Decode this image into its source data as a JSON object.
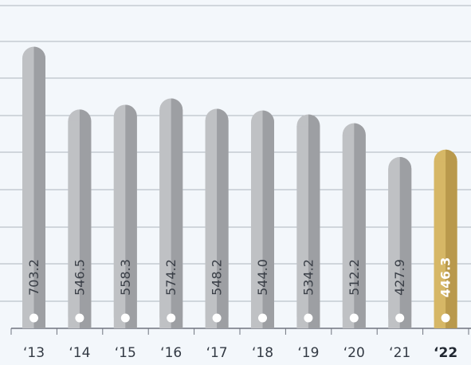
{
  "chart_data": {
    "type": "bar",
    "categories": [
      "‘13",
      "‘14",
      "‘15",
      "‘16",
      "‘17",
      "‘18",
      "‘19",
      "‘20",
      "‘21",
      "‘22"
    ],
    "series": [
      {
        "values": [
          703.2,
          546.5,
          558.3,
          574.2,
          548.2,
          544.0,
          534.2,
          512.2,
          427.9,
          446.3
        ]
      }
    ],
    "value_labels": [
      "703.2",
      "546.5",
      "558.3",
      "574.2",
      "548.2",
      "544.0",
      "534.2",
      "512.2",
      "427.9",
      "446.3"
    ],
    "highlight_index": 9,
    "ylim": [
      0,
      800
    ],
    "grid": true,
    "title": "",
    "xlabel": "",
    "ylabel": "",
    "colors": {
      "bar_light": "#bfc1c4",
      "bar_dark": "#9d9fa3",
      "highlight_light": "#d6b766",
      "highlight_dark": "#b9994c",
      "grid": "#aeb4bd",
      "axis": "#6f7480",
      "background": "#f3f7fb"
    }
  }
}
